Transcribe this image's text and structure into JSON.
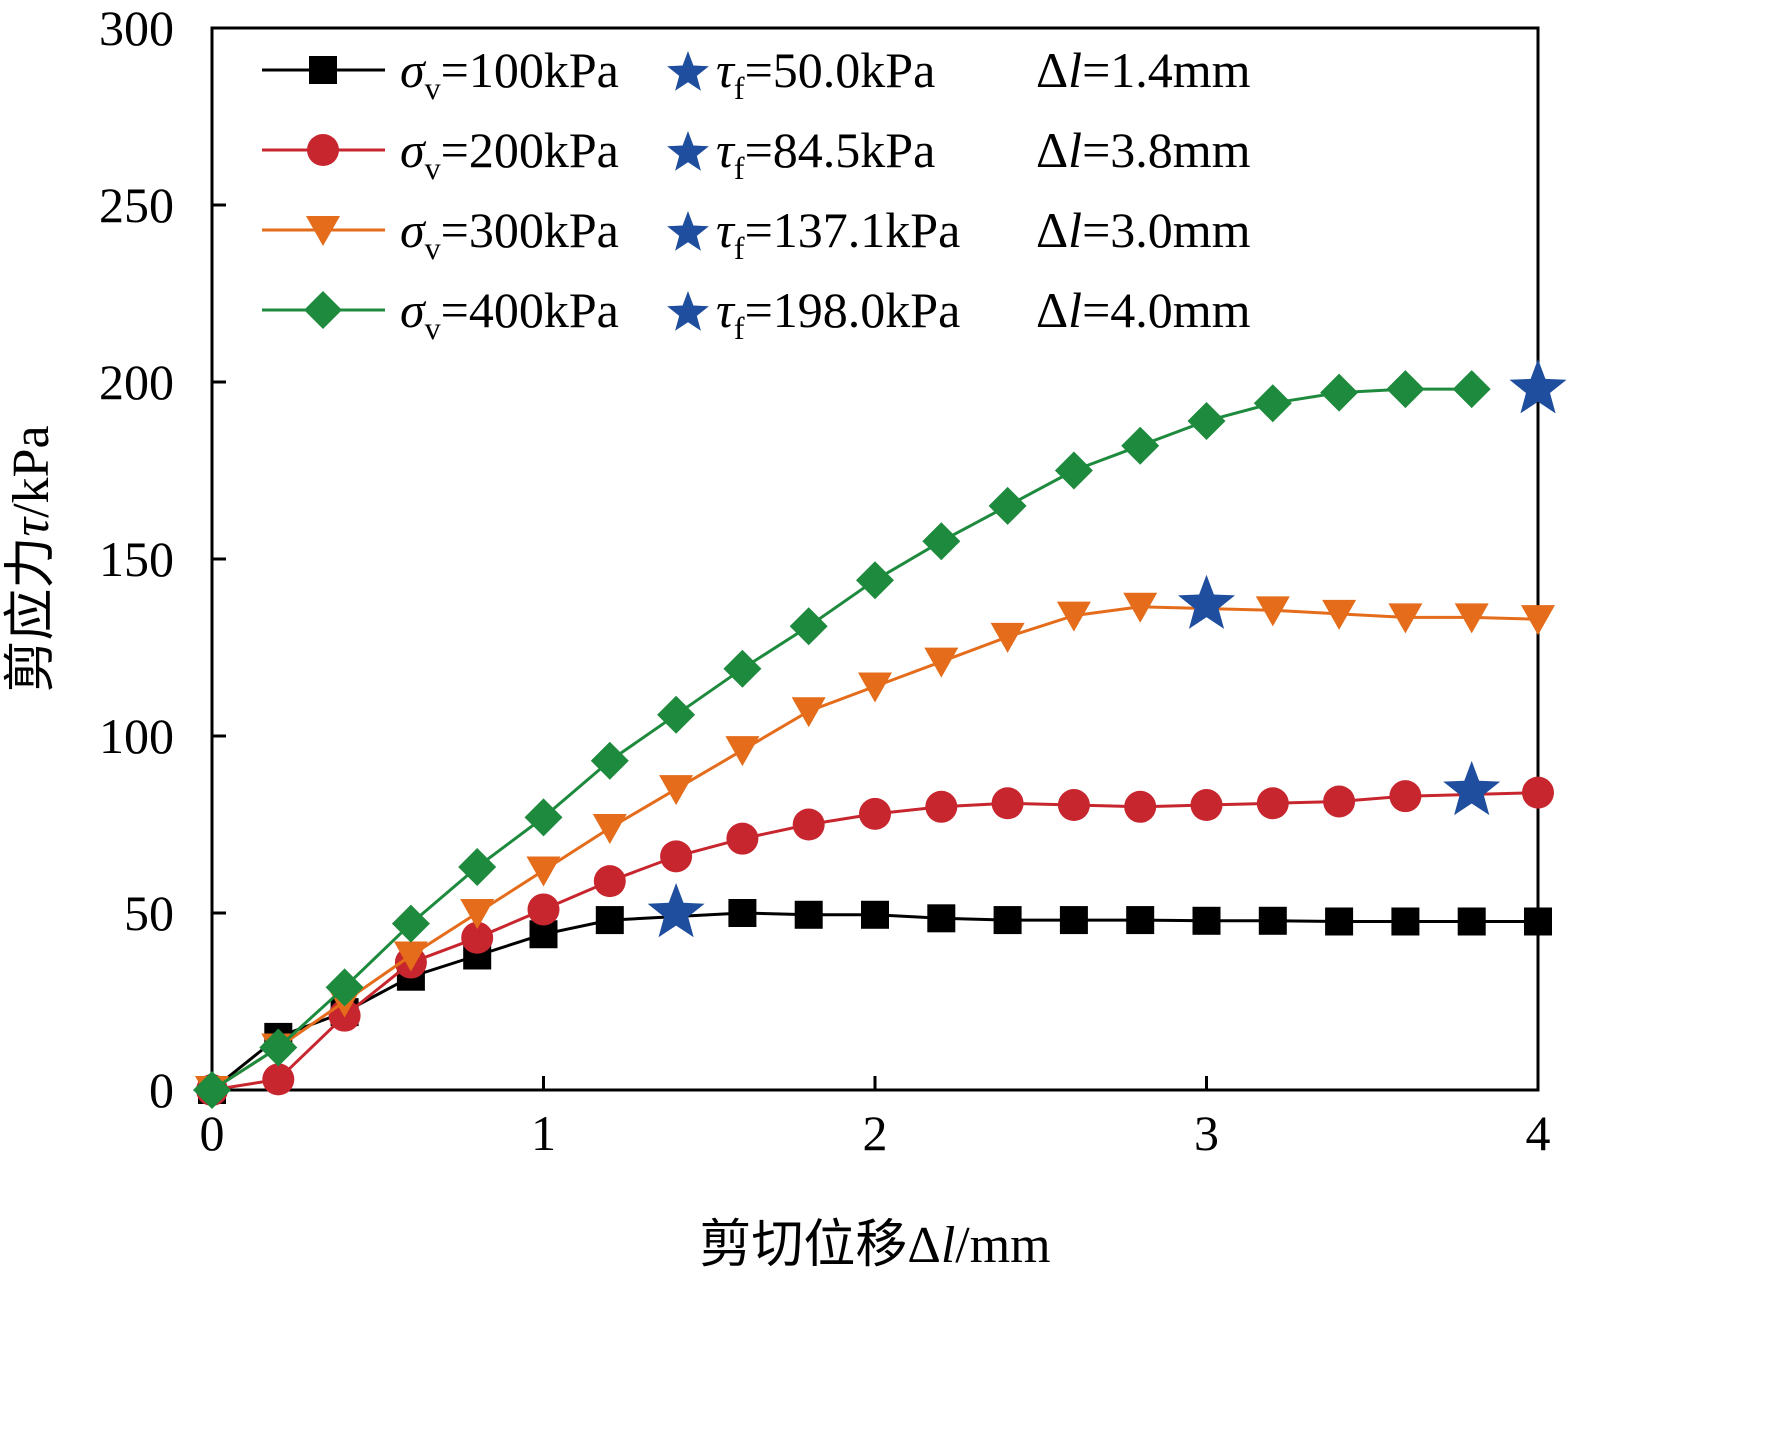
{
  "chart_data": {
    "type": "line",
    "xlabel_prefix": "剪切位移",
    "xlabel_symbol": "Δl",
    "xlabel_unit": "/mm",
    "ylabel_prefix": "剪应力",
    "ylabel_symbol": "τ",
    "ylabel_unit": "/kPa",
    "xlim": [
      0,
      4
    ],
    "ylim": [
      0,
      300
    ],
    "xticks": [
      0,
      1,
      2,
      3,
      4
    ],
    "yticks": [
      0,
      50,
      100,
      150,
      200,
      250,
      300
    ],
    "grid": false,
    "legend_position": "top-left",
    "series": [
      {
        "legend_sigma": "=100kPa",
        "legend_tau": "=50.0kPa",
        "legend_dl": "=1.4mm",
        "color": "#000000",
        "marker": "square",
        "x": [
          0,
          0.2,
          0.4,
          0.6,
          0.8,
          1.0,
          1.2,
          1.6,
          1.8,
          2.0,
          2.2,
          2.4,
          2.6,
          2.8,
          3.0,
          3.2,
          3.4,
          3.6,
          3.8,
          4.0
        ],
        "y": [
          0,
          15,
          22,
          32,
          38,
          44,
          48,
          50,
          49.5,
          49.5,
          48.5,
          48,
          48,
          48,
          47.8,
          47.8,
          47.6,
          47.6,
          47.6,
          47.6
        ],
        "peak": {
          "x": 1.4,
          "y": 50.0
        }
      },
      {
        "legend_sigma": "=200kPa",
        "legend_tau": "=84.5kPa",
        "legend_dl": "=3.8mm",
        "color": "#C8262E",
        "marker": "circle",
        "x": [
          0,
          0.2,
          0.4,
          0.6,
          0.8,
          1.0,
          1.2,
          1.4,
          1.6,
          1.8,
          2.0,
          2.2,
          2.4,
          2.6,
          2.8,
          3.0,
          3.2,
          3.4,
          3.6,
          4.0
        ],
        "y": [
          0,
          3,
          21,
          36,
          43,
          51,
          59,
          66,
          71,
          75,
          78,
          80,
          81,
          80.5,
          80,
          80.5,
          81,
          81.5,
          83,
          84
        ],
        "peak": {
          "x": 3.8,
          "y": 84.5
        }
      },
      {
        "legend_sigma": "=300kPa",
        "legend_tau": "=137.1kPa",
        "legend_dl": "=3.0mm",
        "color": "#E46C1A",
        "marker": "triangle-down",
        "x": [
          0,
          0.2,
          0.4,
          0.6,
          0.8,
          1.0,
          1.2,
          1.4,
          1.6,
          1.8,
          2.0,
          2.2,
          2.4,
          2.6,
          2.8,
          3.2,
          3.4,
          3.6,
          3.8,
          4.0
        ],
        "y": [
          0,
          12,
          25,
          38,
          50,
          62,
          74,
          85,
          96,
          107,
          114,
          121,
          128,
          134,
          136.5,
          135.5,
          134.5,
          133.5,
          133.5,
          133
        ],
        "peak": {
          "x": 3.0,
          "y": 137.1
        }
      },
      {
        "legend_sigma": "=400kPa",
        "legend_tau": "=198.0kPa",
        "legend_dl": "=4.0mm",
        "color": "#1E8A3E",
        "marker": "diamond",
        "x": [
          0,
          0.2,
          0.4,
          0.6,
          0.8,
          1.0,
          1.2,
          1.4,
          1.6,
          1.8,
          2.0,
          2.2,
          2.4,
          2.6,
          2.8,
          3.0,
          3.2,
          3.4,
          3.6,
          3.8
        ],
        "y": [
          0,
          12,
          29,
          47,
          63,
          77,
          93,
          106,
          119,
          131,
          144,
          155,
          165,
          175,
          182,
          189,
          194,
          197,
          198,
          198
        ],
        "peak": {
          "x": 4.0,
          "y": 198.0
        }
      }
    ],
    "peak_marker_color": "#1F4E9E"
  }
}
